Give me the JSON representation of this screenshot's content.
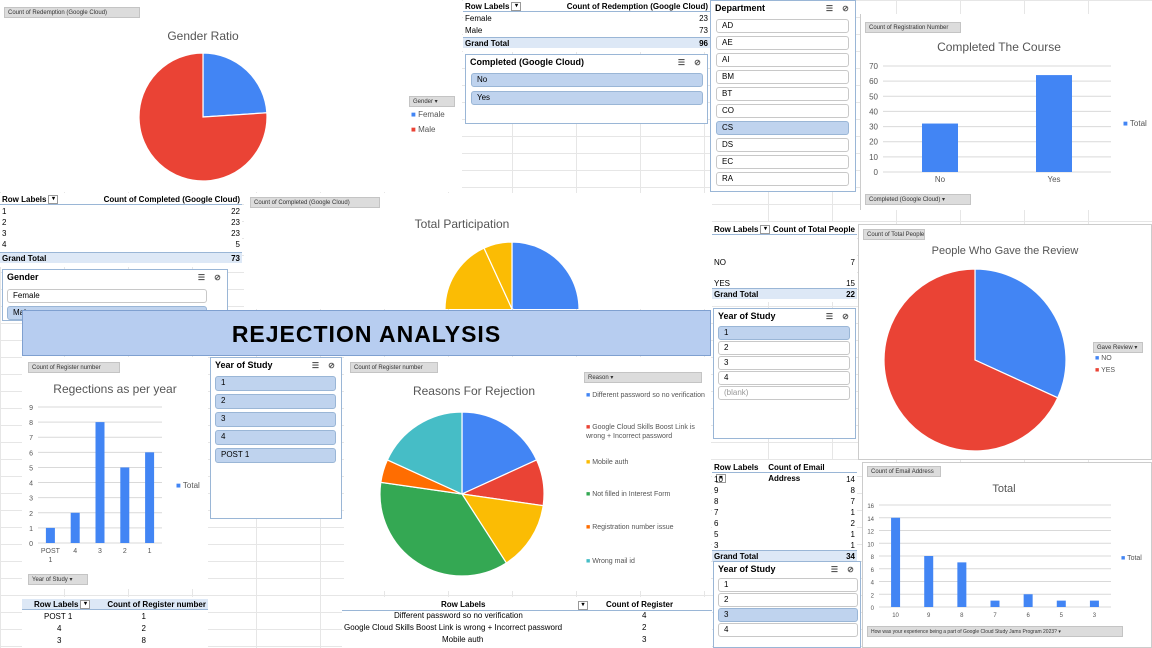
{
  "colors": {
    "blue": "#4285f4",
    "red": "#ea4335",
    "yellow": "#fbbc04",
    "green": "#34a853",
    "orange": "#ff6d01",
    "teal": "#46bdc6",
    "banner": "#b7cdf0",
    "selected": "#bfd3ee"
  },
  "gender_panel": {
    "chip": "Count of Redemption (Google Cloud)",
    "title": "Gender Ratio",
    "legend_field": "Gender",
    "legend_female": "Female",
    "legend_male": "Male"
  },
  "redemption_pivot": {
    "col1": "Row Labels",
    "col2": "Count of Redemption (Google Cloud)",
    "rows": [
      {
        "label": "Female",
        "value": "23"
      },
      {
        "label": "Male",
        "value": "73"
      }
    ],
    "total_label": "Grand Total",
    "total_value": "96"
  },
  "completed_slicer": {
    "title": "Completed (Google Cloud)",
    "items": [
      "No",
      "Yes"
    ]
  },
  "department_slicer": {
    "title": "Department",
    "items": [
      "AD",
      "AE",
      "AI",
      "BM",
      "BT",
      "CO",
      "CS",
      "DS",
      "EC",
      "RA"
    ]
  },
  "completed_course": {
    "chip": "Count of Registration Number",
    "title": "Completed The Course",
    "legend": "Total",
    "filter_chip": "Completed (Google Cloud)",
    "y_ticks": [
      "70",
      "60",
      "50",
      "40",
      "30",
      "20",
      "10",
      "0"
    ]
  },
  "completed_pivot": {
    "col1": "Row Labels",
    "col2": "Count of Completed (Google Cloud)",
    "rows": [
      {
        "label": "1",
        "value": "22"
      },
      {
        "label": "2",
        "value": "23"
      },
      {
        "label": "3",
        "value": "23"
      },
      {
        "label": "4",
        "value": "5"
      }
    ],
    "total_label": "Grand Total",
    "total_value": "73"
  },
  "gender_slicer": {
    "title": "Gender",
    "items": [
      "Female",
      "Male"
    ]
  },
  "participation": {
    "chip": "Count of Completed (Google Cloud)",
    "title": "Total Participation"
  },
  "review_pivot": {
    "col1": "Row Labels",
    "col2": "Count of Total People",
    "rows": [
      {
        "label": "NO",
        "value": "7"
      },
      {
        "label": "YES",
        "value": "15"
      }
    ],
    "total_label": "Grand Total",
    "total_value": "22"
  },
  "review_chart": {
    "chip": "Count of Total People",
    "title": "People Who Gave the Review",
    "legend_field": "Gave Review",
    "legend_no": "NO",
    "legend_yes": "YES"
  },
  "year_slicer_right": {
    "title": "Year of Study",
    "items": [
      "1",
      "2",
      "3",
      "4",
      "(blank)"
    ]
  },
  "banner": {
    "title": "REJECTION ANALYSIS"
  },
  "rejections_year": {
    "chip": "Count of Register number",
    "title": "Regections as per year",
    "legend": "Total",
    "filter_chip": "Year of Study",
    "y_ticks": [
      "9",
      "8",
      "7",
      "6",
      "5",
      "4",
      "3",
      "2",
      "1",
      "0"
    ],
    "categories": [
      "POST 1",
      "4",
      "3",
      "2",
      "1"
    ]
  },
  "year_slicer_mid": {
    "title": "Year of Study",
    "items": [
      "1",
      "2",
      "3",
      "4",
      "POST 1"
    ]
  },
  "reasons": {
    "chip": "Count of Register number",
    "title": "Reasons For Rejection",
    "filter_chip": "Reason",
    "legend": [
      "Different password so no verification",
      "Google Cloud Skills Boost Link is wrong + Incorrect password",
      "Mobile auth",
      "Not filled in Interest Form",
      "Registration number issue",
      "Wrong mail id"
    ]
  },
  "email_pivot": {
    "col1": "Row Labels",
    "col2": "Count of Email Address",
    "rows": [
      {
        "label": "10",
        "value": "14"
      },
      {
        "label": "9",
        "value": "8"
      },
      {
        "label": "8",
        "value": "7"
      },
      {
        "label": "7",
        "value": "1"
      },
      {
        "label": "6",
        "value": "2"
      },
      {
        "label": "5",
        "value": "1"
      },
      {
        "label": "3",
        "value": "1"
      }
    ],
    "total_label": "Grand Total",
    "total_value": "34"
  },
  "year_slicer_bottom": {
    "title": "Year of Study",
    "items": [
      "1",
      "2",
      "3",
      "4"
    ]
  },
  "total_chart": {
    "chip": "Count of Email Address",
    "title": "Total",
    "legend": "Total",
    "filter_chip": "How was your experience being a part of Google Cloud Study Jams Program 2023?",
    "y_ticks": [
      "16",
      "14",
      "12",
      "10",
      "8",
      "6",
      "4",
      "2",
      "0"
    ],
    "categories": [
      "10",
      "9",
      "8",
      "7",
      "6",
      "5",
      "3"
    ]
  },
  "register_pivot": {
    "col1": "Row Labels",
    "col2": "Count of Register number",
    "rows": [
      {
        "label": "POST 1",
        "value": "1"
      },
      {
        "label": "4",
        "value": "2"
      },
      {
        "label": "3",
        "value": "8"
      }
    ]
  },
  "reason_pivot": {
    "col1": "Row Labels",
    "col2": "Count of Register",
    "rows": [
      {
        "label": "Different password so no verification",
        "value": "4"
      },
      {
        "label": "Google Cloud Skills Boost Link is wrong + Incorrect password",
        "value": "2"
      },
      {
        "label": "Mobile auth",
        "value": "3"
      }
    ]
  },
  "chart_data": [
    {
      "type": "pie",
      "title": "Gender Ratio",
      "categories": [
        "Female",
        "Male"
      ],
      "values": [
        23,
        73
      ],
      "legend_placement": "right"
    },
    {
      "type": "bar",
      "title": "Completed The Course",
      "categories": [
        "No",
        "Yes"
      ],
      "values": [
        32,
        64
      ],
      "ylim": [
        0,
        70
      ],
      "grid": true,
      "series": [
        {
          "name": "Total",
          "values": [
            32,
            64
          ]
        }
      ],
      "legend_placement": "right"
    },
    {
      "type": "pie",
      "title": "Total Participation",
      "categories": [
        "1",
        "2",
        "3",
        "4"
      ],
      "values": [
        22,
        23,
        23,
        5
      ]
    },
    {
      "type": "pie",
      "title": "People Who Gave the Review",
      "categories": [
        "NO",
        "YES"
      ],
      "values": [
        7,
        15
      ],
      "legend_placement": "right"
    },
    {
      "type": "bar",
      "title": "Regections as per year",
      "categories": [
        "POST 1",
        "4",
        "3",
        "2",
        "1"
      ],
      "values": [
        1,
        2,
        8,
        5,
        6
      ],
      "ylim": [
        0,
        9
      ],
      "grid": true,
      "series": [
        {
          "name": "Total",
          "values": [
            1,
            2,
            8,
            5,
            6
          ]
        }
      ],
      "legend_placement": "right"
    },
    {
      "type": "pie",
      "title": "Reasons For Rejection",
      "categories": [
        "Different password so no verification",
        "Google Cloud Skills Boost Link is wrong + Incorrect password",
        "Mobile auth",
        "Not filled in Interest Form",
        "Registration number issue",
        "Wrong mail id"
      ],
      "values": [
        4,
        2,
        3,
        8,
        1,
        4
      ],
      "legend_placement": "right"
    },
    {
      "type": "bar",
      "title": "Total",
      "categories": [
        "10",
        "9",
        "8",
        "7",
        "6",
        "5",
        "3"
      ],
      "values": [
        14,
        8,
        7,
        1,
        2,
        1,
        1
      ],
      "ylim": [
        0,
        16
      ],
      "grid": true,
      "series": [
        {
          "name": "Total",
          "values": [
            14,
            8,
            7,
            1,
            2,
            1,
            1
          ]
        }
      ],
      "legend_placement": "right"
    }
  ]
}
